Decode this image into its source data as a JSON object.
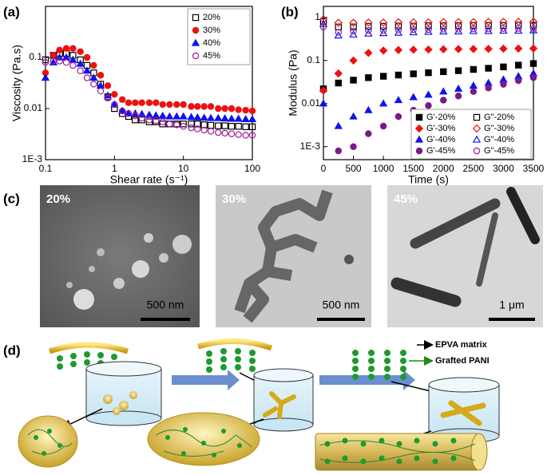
{
  "chart_data": [
    {
      "type": "scatter",
      "panel_label": "(a)",
      "xlabel": "Shear rate (s⁻¹)",
      "ylabel": "Viscosity (Pa.s)",
      "xscale": "log",
      "yscale": "log",
      "xlim": [
        0.1,
        100
      ],
      "ylim": [
        0.001,
        1
      ],
      "xticks": [
        0.1,
        1,
        10,
        100
      ],
      "yticks": [
        {
          "value": 0.001,
          "label": "1E-3"
        },
        0.01,
        0.1
      ],
      "legend": "upper right",
      "x": [
        0.1,
        0.13,
        0.16,
        0.2,
        0.25,
        0.32,
        0.4,
        0.5,
        0.63,
        0.8,
        1,
        1.3,
        1.6,
        2,
        2.5,
        3.2,
        4,
        5,
        6.3,
        8,
        10,
        13,
        16,
        20,
        25,
        32,
        40,
        50,
        63,
        80,
        100
      ],
      "series": [
        {
          "name": "20%",
          "color": "#000000",
          "marker": "square",
          "filled": false,
          "values": [
            0.09,
            0.11,
            0.12,
            0.12,
            0.11,
            0.09,
            0.07,
            0.05,
            0.03,
            0.017,
            0.01,
            0.008,
            0.007,
            0.006,
            0.006,
            0.0055,
            0.0055,
            0.005,
            0.005,
            0.005,
            0.005,
            0.005,
            0.005,
            0.0048,
            0.0047,
            0.0046,
            0.0046,
            0.0045,
            0.0045,
            0.0044,
            0.0044
          ]
        },
        {
          "name": "30%",
          "color": "#ee1111",
          "marker": "circle",
          "filled": true,
          "values": [
            0.05,
            0.11,
            0.14,
            0.15,
            0.15,
            0.13,
            0.1,
            0.07,
            0.045,
            0.028,
            0.019,
            0.015,
            0.013,
            0.013,
            0.013,
            0.013,
            0.013,
            0.012,
            0.012,
            0.012,
            0.012,
            0.011,
            0.011,
            0.011,
            0.011,
            0.01,
            0.01,
            0.01,
            0.0095,
            0.0093,
            0.009
          ]
        },
        {
          "name": "40%",
          "color": "#1111ee",
          "marker": "triangle",
          "filled": true,
          "values": [
            0.04,
            0.08,
            0.1,
            0.1,
            0.09,
            0.075,
            0.055,
            0.04,
            0.028,
            0.018,
            0.012,
            0.009,
            0.008,
            0.008,
            0.0078,
            0.0075,
            0.0073,
            0.0072,
            0.007,
            0.007,
            0.007,
            0.0068,
            0.0067,
            0.0066,
            0.0065,
            0.0065,
            0.0064,
            0.0063,
            0.0063,
            0.0062,
            0.0062
          ]
        },
        {
          "name": "45%",
          "color": "#9b1b9b",
          "marker": "circle",
          "filled": false,
          "values": [
            0.08,
            0.085,
            0.085,
            0.08,
            0.07,
            0.055,
            0.04,
            0.03,
            0.022,
            0.016,
            0.012,
            0.009,
            0.008,
            0.0072,
            0.0065,
            0.006,
            0.0058,
            0.0055,
            0.005,
            0.0048,
            0.0045,
            0.0042,
            0.004,
            0.0038,
            0.0036,
            0.0034,
            0.0033,
            0.0032,
            0.0031,
            0.003,
            0.003
          ]
        }
      ]
    },
    {
      "type": "scatter",
      "panel_label": "(b)",
      "xlabel": "Time (s)",
      "ylabel": "Modulus (Pa)",
      "xscale": "linear",
      "yscale": "log",
      "xlim": [
        0,
        3500
      ],
      "ylim": [
        0.0005,
        1.8
      ],
      "xticks": [
        0,
        500,
        1000,
        1500,
        2000,
        2500,
        3000,
        3500
      ],
      "yticks": [
        {
          "value": 0.001,
          "label": "1E-3"
        },
        0.01,
        0.1,
        1
      ],
      "legend": "lower right",
      "x": [
        0,
        250,
        500,
        750,
        1000,
        1250,
        1500,
        1750,
        2000,
        2250,
        2500,
        2750,
        3000,
        3250,
        3500
      ],
      "series": [
        {
          "name": "G'-20%",
          "color": "#000000",
          "marker": "square",
          "filled": true,
          "values": [
            0.022,
            0.03,
            0.035,
            0.04,
            0.043,
            0.046,
            0.049,
            0.052,
            0.055,
            0.058,
            0.062,
            0.066,
            0.071,
            0.078,
            0.085
          ]
        },
        {
          "name": "G'-30%",
          "color": "#ee1111",
          "marker": "diamond",
          "filled": true,
          "values": [
            0.02,
            0.05,
            0.1,
            0.15,
            0.17,
            0.175,
            0.178,
            0.18,
            0.182,
            0.184,
            0.185,
            0.186,
            0.188,
            0.189,
            0.19
          ]
        },
        {
          "name": "G'-40%",
          "color": "#1111ee",
          "marker": "triangle",
          "filled": true,
          "values": [
            0.01,
            0.003,
            0.005,
            0.007,
            0.01,
            0.012,
            0.014,
            0.016,
            0.019,
            0.022,
            0.026,
            0.03,
            0.036,
            0.043,
            0.05
          ]
        },
        {
          "name": "G'-45%",
          "color": "#7a1a8a",
          "marker": "circle",
          "filled": true,
          "values": [
            null,
            0.0008,
            0.001,
            0.002,
            0.003,
            0.005,
            0.007,
            0.009,
            0.012,
            0.015,
            0.019,
            0.023,
            0.028,
            0.034,
            0.04
          ]
        },
        {
          "name": "G\"-20%",
          "color": "#000000",
          "marker": "square",
          "filled": false,
          "values": [
            0.8,
            0.6,
            0.6,
            0.62,
            0.62,
            0.63,
            0.63,
            0.64,
            0.64,
            0.64,
            0.65,
            0.65,
            0.65,
            0.66,
            0.66
          ]
        },
        {
          "name": "G\"-30%",
          "color": "#ee1111",
          "marker": "diamond",
          "filled": false,
          "values": [
            0.9,
            0.75,
            0.75,
            0.76,
            0.76,
            0.77,
            0.77,
            0.77,
            0.78,
            0.78,
            0.78,
            0.79,
            0.79,
            0.79,
            0.8
          ]
        },
        {
          "name": "G\"-40%",
          "color": "#1111ee",
          "marker": "triangle",
          "filled": false,
          "values": [
            0.7,
            0.38,
            0.4,
            0.42,
            0.43,
            0.44,
            0.45,
            0.46,
            0.47,
            0.47,
            0.48,
            0.48,
            0.49,
            0.49,
            0.5
          ]
        },
        {
          "name": "G\"-45%",
          "color": "#9b1b9b",
          "marker": "circle",
          "filled": false,
          "values": [
            0.6,
            0.45,
            0.48,
            0.5,
            0.5,
            0.51,
            0.52,
            0.52,
            0.53,
            0.53,
            0.54,
            0.54,
            0.55,
            0.55,
            0.55
          ]
        }
      ]
    }
  ],
  "panel_c": {
    "panel_label": "(c)",
    "images": [
      {
        "label": "20%",
        "scale_bar": "500 nm"
      },
      {
        "label": "30%",
        "scale_bar": "500 nm"
      },
      {
        "label": "45%",
        "scale_bar": "1 μm"
      }
    ]
  },
  "panel_d": {
    "panel_label": "(d)",
    "labels": [
      "EPVA matrix",
      "Grafted PANI"
    ]
  }
}
